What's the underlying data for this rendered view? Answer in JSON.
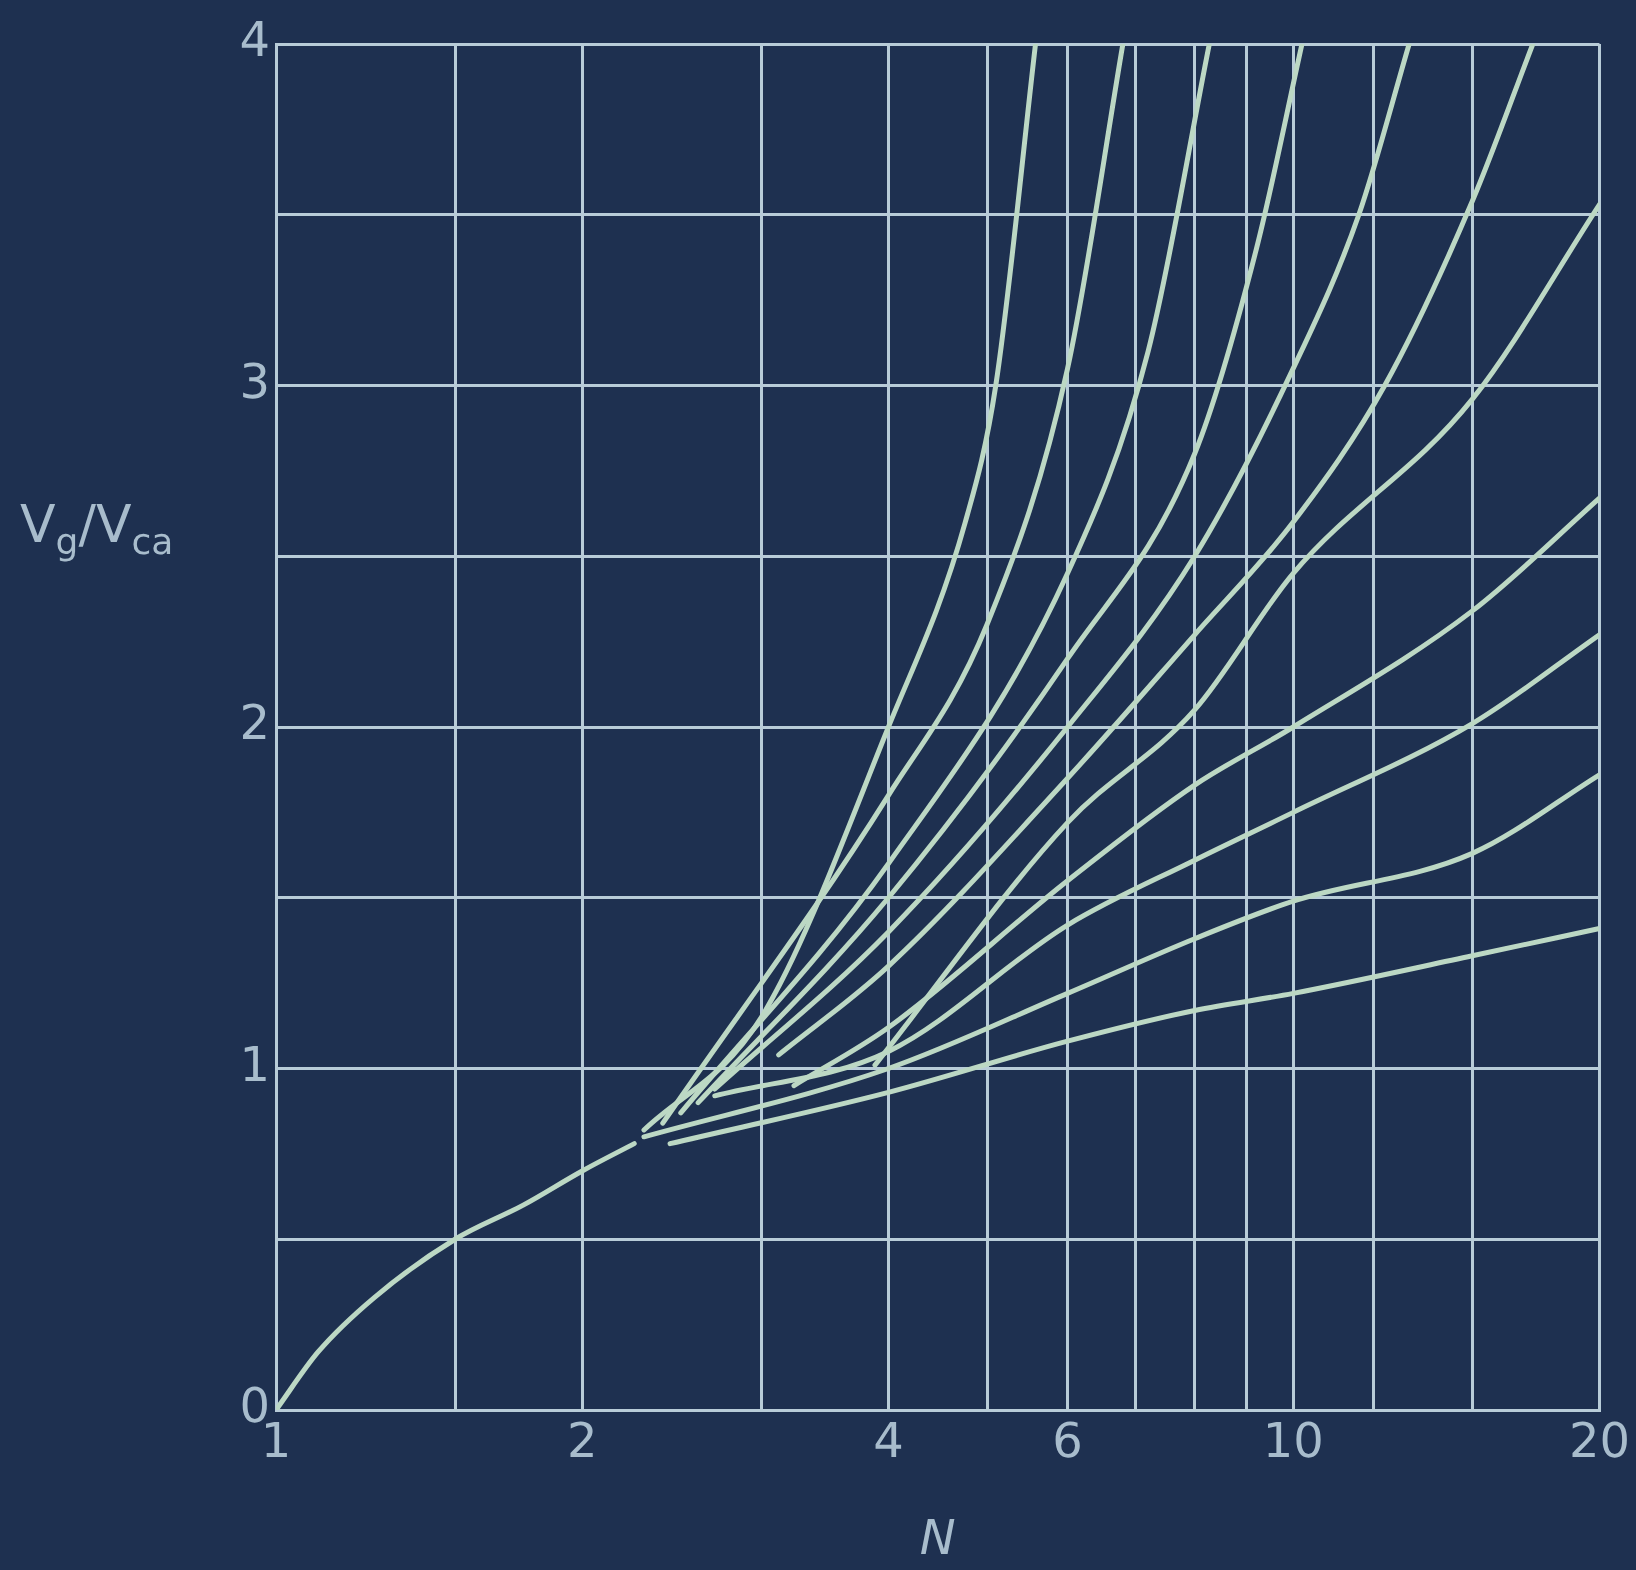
{
  "chart_data": {
    "type": "line",
    "xlabel": "N",
    "ylabel": "V$_{g}$/V$_{ca}$",
    "log": "x",
    "grid": true,
    "legend": false,
    "marker": "none",
    "line_style": "solid",
    "xlim": [
      1,
      20
    ],
    "xticks": [
      1,
      {
        "value": 1.5,
        "label": null
      },
      2,
      {
        "value": 3,
        "label": null
      },
      4,
      {
        "value": 5,
        "label": null
      },
      6,
      {
        "value": 7,
        "label": null
      },
      {
        "value": 8,
        "label": null
      },
      {
        "value": 9,
        "label": null
      },
      10,
      {
        "value": 12,
        "label": null
      },
      {
        "value": 15,
        "label": null
      },
      20
    ],
    "ylim": [
      0,
      4
    ],
    "yticks": [
      0,
      {
        "value": 0.5,
        "label": null
      },
      1,
      {
        "value": 1.5,
        "label": null
      },
      2,
      {
        "value": 2.5,
        "label": null
      },
      3,
      {
        "value": 3.5,
        "label": null
      },
      4
    ],
    "series": [
      {
        "color": "#bcd8c4",
        "x": [
          1,
          1.1,
          1.25,
          1.5,
          1.75,
          2,
          2.25
        ],
        "values": [
          0,
          0.17,
          0.33,
          0.5,
          0.6,
          0.7,
          0.78
        ]
      },
      {
        "color": "#bcd8c4",
        "x": [
          2.44,
          4,
          6,
          8,
          10,
          15,
          20
        ],
        "values": [
          0.78,
          0.93,
          1.08,
          1.17,
          1.22,
          1.33,
          1.41
        ]
      },
      {
        "color": "#bcd8c4",
        "x": [
          2.3,
          4,
          6,
          8,
          10,
          15,
          20
        ],
        "values": [
          0.8,
          1.0,
          1.22,
          1.38,
          1.49,
          1.63,
          1.86
        ]
      },
      {
        "color": "#bcd8c4",
        "x": [
          2.7,
          4,
          6,
          8,
          10,
          15,
          20
        ],
        "values": [
          0.92,
          1.05,
          1.42,
          1.61,
          1.75,
          2.01,
          2.27
        ]
      },
      {
        "color": "#bcd8c4",
        "x": [
          3.23,
          4,
          6,
          8,
          10,
          15,
          20
        ],
        "values": [
          0.95,
          1.12,
          1.55,
          1.83,
          2.0,
          2.34,
          2.67
        ]
      },
      {
        "color": "#bcd8c4",
        "x": [
          3.88,
          6,
          8,
          10,
          15,
          20
        ],
        "values": [
          1.01,
          1.72,
          2.05,
          2.45,
          2.96,
          3.53
        ]
      },
      {
        "color": "#bcd8c4",
        "x": [
          3.12,
          4,
          6,
          8,
          10,
          12.3,
          15,
          17.2
        ],
        "values": [
          1.04,
          1.3,
          1.85,
          2.27,
          2.6,
          3.0,
          3.54,
          4
        ]
      },
      {
        "color": "#bcd8c4",
        "x": [
          2.7,
          4,
          6,
          8,
          10,
          11.6,
          13
        ],
        "values": [
          0.94,
          1.4,
          2.0,
          2.5,
          3.05,
          3.5,
          4
        ]
      },
      {
        "color": "#bcd8c4",
        "x": [
          2.6,
          4,
          6,
          8,
          9.2,
          10.2
        ],
        "values": [
          0.9,
          1.5,
          2.2,
          2.8,
          3.4,
          4
        ]
      },
      {
        "color": "#bcd8c4",
        "x": [
          2.5,
          4,
          6,
          7.2,
          8.27
        ],
        "values": [
          0.87,
          1.6,
          2.45,
          3.1,
          4
        ]
      },
      {
        "color": "#bcd8c4",
        "x": [
          2.4,
          4,
          5,
          6,
          6.8
        ],
        "values": [
          0.84,
          1.8,
          2.3,
          3.05,
          4
        ]
      },
      {
        "color": "#bcd8c4",
        "x": [
          2.3,
          3,
          4,
          4.76,
          5.1,
          5.58
        ],
        "values": [
          0.82,
          1.15,
          2.0,
          2.6,
          3.0,
          4
        ]
      }
    ]
  }
}
